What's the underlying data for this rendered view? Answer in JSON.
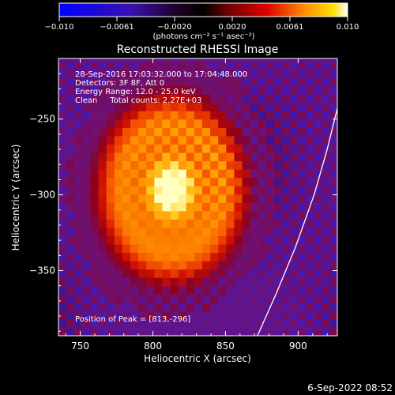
{
  "chart_data": {
    "type": "heatmap",
    "title": "Reconstructed RHESSI Image",
    "colorbar": {
      "ticks": [
        "−0.010",
        "−0.0061",
        "−0.0020",
        "0.0020",
        "0.0061",
        "0.010"
      ],
      "unit_label": "(photons cm⁻² s⁻¹ asec⁻²)",
      "range": [
        -0.01,
        0.01
      ]
    },
    "xlabel": "Heliocentric X (arcsec)",
    "ylabel": "Heliocentric Y (arcsec)",
    "xlim": [
      735,
      927
    ],
    "ylim": [
      -393,
      -210
    ],
    "x_ticks": [
      750,
      800,
      850,
      900
    ],
    "x_tick_labels": [
      "750",
      "800",
      "850",
      "900"
    ],
    "y_ticks": [
      -250,
      -300,
      -350
    ],
    "y_tick_labels": [
      "−250",
      "−300",
      "−350"
    ],
    "peak": {
      "x": 813,
      "y": -296
    },
    "annotations": [
      "28-Sep-2016 17:03:32.000 to 17:04:48.000",
      "Detectors: 3F 8F, Att 0",
      "Energy Range: 12.0 - 25.0 keV",
      "Clean     Total counts: 2.27E+03",
      "Position of Peak = [813,-296]"
    ],
    "limb_curve": [
      [
        872,
        -393
      ],
      [
        885,
        -365
      ],
      [
        898,
        -335
      ],
      [
        911,
        -300
      ],
      [
        920,
        -270
      ],
      [
        927,
        -243
      ]
    ]
  },
  "timestamp": "6-Sep-2022 08:52"
}
